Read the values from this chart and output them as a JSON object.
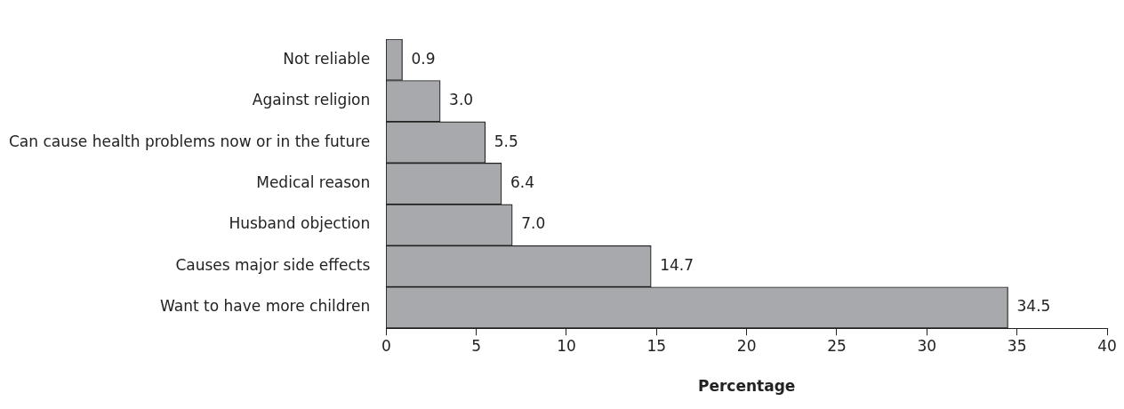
{
  "chart_data": {
    "type": "bar",
    "orientation": "horizontal",
    "xlabel": "Percentage",
    "categories": [
      "Not reliable",
      "Against religion",
      "Can cause health problems now or in the future",
      "Medical reason",
      "Husband objection",
      "Causes major side effects",
      "Want to have more children"
    ],
    "values": [
      0.9,
      3.0,
      5.5,
      6.4,
      7.0,
      14.7,
      34.5
    ],
    "value_labels": [
      "0.9",
      "3.0",
      "5.5",
      "6.4",
      "7.0",
      "14.7",
      "34.5"
    ],
    "color": "#a7a9ac",
    "xlim": [
      0,
      40
    ],
    "xticks": [
      0,
      5,
      10,
      15,
      20,
      25,
      30,
      35,
      40
    ],
    "grid": false,
    "legend": false
  }
}
